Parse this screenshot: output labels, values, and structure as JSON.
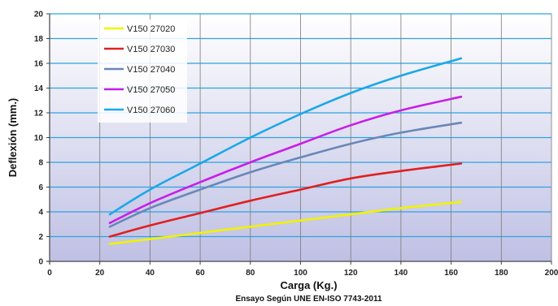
{
  "chart_data": {
    "type": "line",
    "title": "",
    "subtitle": "Ensayo Según UNE EN-ISO 7743-2011",
    "xlabel": "Carga (Kg.)",
    "ylabel": "Deflexión (mm.)",
    "xlim": [
      0,
      200
    ],
    "ylim": [
      0,
      20
    ],
    "xticks": [
      "0",
      "20",
      "40",
      "60",
      "80",
      "100",
      "120",
      "140",
      "160",
      "180",
      "200"
    ],
    "yticks": [
      "0",
      "2",
      "4",
      "6",
      "8",
      "10",
      "12",
      "14",
      "16",
      "18",
      "20"
    ],
    "grid": true,
    "legend_position": "top-left",
    "background": "gradient white to lavender",
    "series": [
      {
        "name": "V150 27020",
        "color": "#f2f200",
        "x": [
          24,
          40,
          60,
          80,
          100,
          120,
          140,
          164
        ],
        "y": [
          1.4,
          1.8,
          2.3,
          2.8,
          3.3,
          3.8,
          4.3,
          4.8
        ]
      },
      {
        "name": "V150 27030",
        "color": "#e02020",
        "x": [
          24,
          40,
          60,
          80,
          100,
          120,
          140,
          164
        ],
        "y": [
          2.0,
          2.9,
          3.9,
          4.9,
          5.8,
          6.7,
          7.3,
          7.9
        ]
      },
      {
        "name": "V150 27040",
        "color": "#6a87b8",
        "x": [
          24,
          40,
          60,
          80,
          100,
          120,
          140,
          164
        ],
        "y": [
          2.8,
          4.3,
          5.8,
          7.2,
          8.4,
          9.5,
          10.4,
          11.2
        ]
      },
      {
        "name": "V150 27050",
        "color": "#c81ee8",
        "x": [
          24,
          40,
          60,
          80,
          100,
          120,
          140,
          164
        ],
        "y": [
          3.1,
          4.7,
          6.4,
          8.0,
          9.5,
          11.0,
          12.2,
          13.3
        ]
      },
      {
        "name": "V150 27060",
        "color": "#1aa8e8",
        "x": [
          24,
          40,
          60,
          80,
          100,
          120,
          140,
          164
        ],
        "y": [
          3.8,
          5.8,
          7.9,
          10.0,
          11.9,
          13.6,
          15.0,
          16.4
        ]
      }
    ]
  }
}
